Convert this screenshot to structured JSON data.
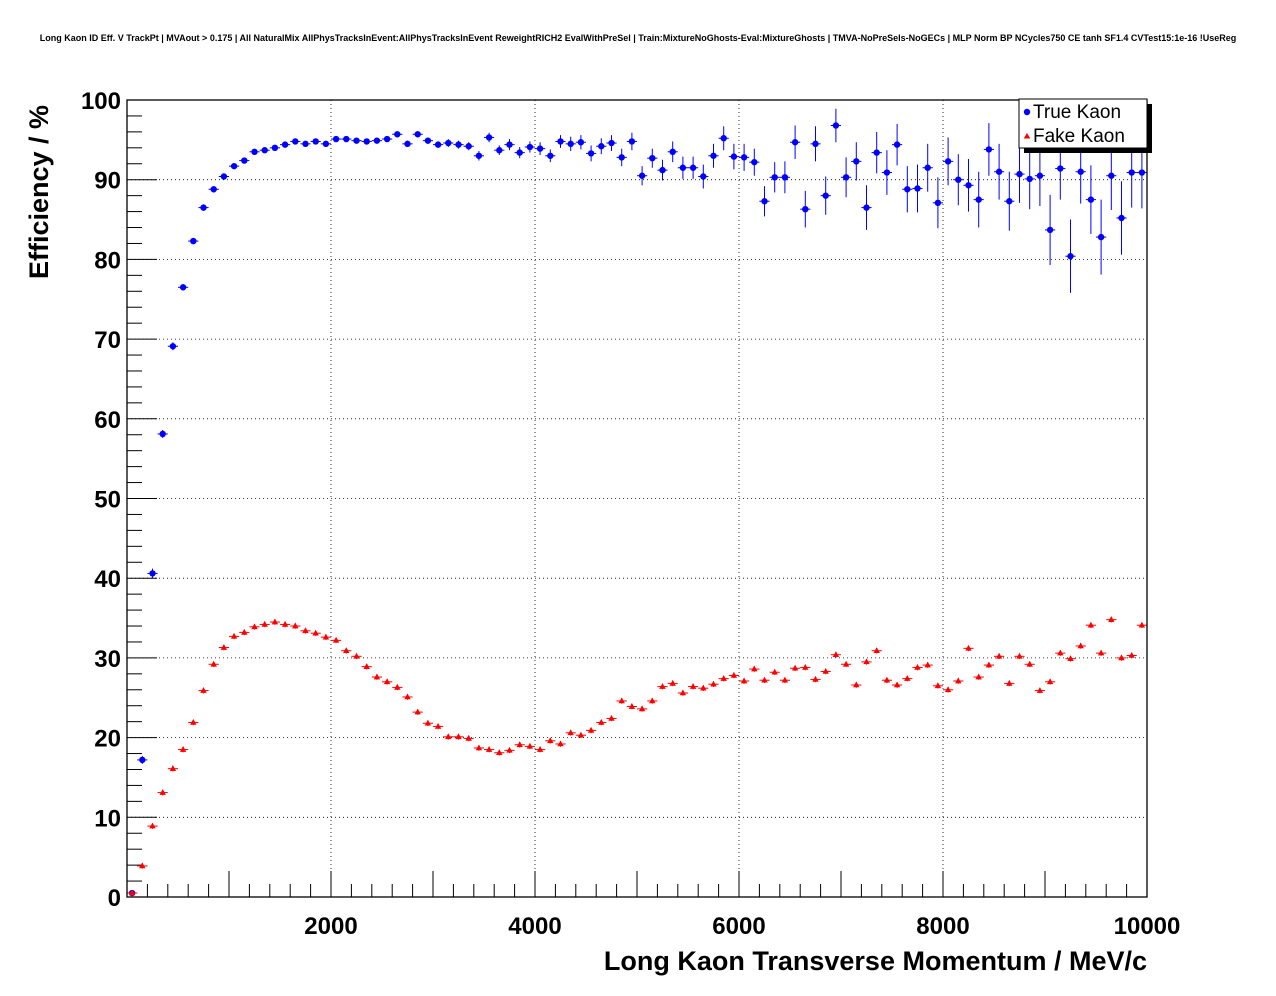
{
  "chart_data": {
    "type": "scatter",
    "title": "Long Kaon ID Eff. V TrackPt | MVAout > 0.175 | All NaturalMix AllPhysTracksInEvent:AllPhysTracksInEvent ReweightRICH2 EvalWithPreSel | Train:MixtureNoGhosts-Eval:MixtureGhosts | TMVA-NoPreSels-NoGECs | MLP Norm BP NCycles750 CE tanh SF1.4 CVTest15:1e-16 !UseReg",
    "xlabel": "Long Kaon Transverse Momentum / MeV/c",
    "ylabel": "Efficiency / %",
    "xlim": [
      0,
      10000
    ],
    "ylim": [
      0,
      100
    ],
    "xticks": [
      2000,
      4000,
      6000,
      8000,
      10000
    ],
    "yticks": [
      0,
      10,
      20,
      30,
      40,
      50,
      60,
      70,
      80,
      90,
      100
    ],
    "grid": true,
    "legend_position": "top-right",
    "series": [
      {
        "name": "True Kaon",
        "color": "#0000ff",
        "marker": "circle",
        "x": [
          50,
          150,
          250,
          350,
          450,
          550,
          650,
          750,
          850,
          950,
          1050,
          1150,
          1250,
          1350,
          1450,
          1550,
          1650,
          1750,
          1850,
          1950,
          2050,
          2150,
          2250,
          2350,
          2450,
          2550,
          2650,
          2750,
          2850,
          2950,
          3050,
          3150,
          3250,
          3350,
          3450,
          3550,
          3650,
          3750,
          3850,
          3950,
          4050,
          4150,
          4250,
          4350,
          4450,
          4550,
          4650,
          4750,
          4850,
          4950,
          5050,
          5150,
          5250,
          5350,
          5450,
          5550,
          5650,
          5750,
          5850,
          5950,
          6050,
          6150,
          6250,
          6350,
          6450,
          6550,
          6650,
          6750,
          6850,
          6950,
          7050,
          7150,
          7250,
          7350,
          7450,
          7550,
          7650,
          7750,
          7850,
          7950,
          8050,
          8150,
          8250,
          8350,
          8450,
          8550,
          8650,
          8750,
          8850,
          8950,
          9050,
          9150,
          9250,
          9350,
          9450,
          9550,
          9650,
          9750,
          9850,
          9950
        ],
        "y": [
          0.5,
          17.2,
          40.6,
          58.1,
          69.1,
          76.5,
          82.3,
          86.5,
          88.8,
          90.4,
          91.7,
          92.4,
          93.5,
          93.7,
          94.0,
          94.4,
          94.8,
          94.5,
          94.8,
          94.5,
          95.1,
          95.1,
          94.9,
          94.8,
          94.9,
          95.1,
          95.7,
          94.5,
          95.7,
          94.9,
          94.4,
          94.6,
          94.4,
          94.2,
          93.0,
          95.3,
          93.7,
          94.4,
          93.4,
          94.1,
          93.9,
          93.0,
          94.8,
          94.5,
          94.7,
          93.3,
          94.2,
          94.6,
          92.8,
          94.8,
          90.5,
          92.7,
          91.2,
          93.5,
          91.5,
          91.5,
          90.4,
          93.0,
          95.2,
          92.9,
          92.8,
          92.2,
          87.3,
          90.3,
          90.3,
          94.7,
          86.3,
          94.5,
          88.0,
          96.8,
          90.3,
          92.3,
          86.5,
          93.4,
          90.9,
          94.4,
          88.8,
          88.9,
          91.5,
          87.1,
          92.3,
          90.0,
          89.3,
          87.5,
          93.8,
          91.0,
          87.3,
          90.7,
          90.1,
          90.5,
          83.7,
          91.4,
          80.4,
          91.0,
          87.5,
          82.8,
          90.5,
          85.2,
          90.9,
          90.9
        ],
        "err": [
          0.1,
          0.5,
          0.6,
          0.5,
          0.5,
          0.4,
          0.4,
          0.4,
          0.4,
          0.3,
          0.3,
          0.3,
          0.3,
          0.3,
          0.3,
          0.3,
          0.3,
          0.3,
          0.3,
          0.3,
          0.3,
          0.3,
          0.3,
          0.3,
          0.3,
          0.3,
          0.4,
          0.4,
          0.4,
          0.4,
          0.4,
          0.5,
          0.5,
          0.5,
          0.6,
          0.6,
          0.6,
          0.7,
          0.7,
          0.7,
          0.8,
          0.8,
          0.8,
          0.9,
          0.9,
          1.0,
          1.0,
          1.0,
          1.1,
          1.1,
          1.2,
          1.2,
          1.3,
          1.3,
          1.4,
          1.4,
          1.5,
          1.5,
          1.5,
          1.6,
          1.7,
          1.7,
          1.9,
          1.9,
          2.0,
          2.1,
          2.3,
          2.2,
          2.4,
          2.1,
          2.5,
          2.4,
          2.8,
          2.6,
          2.8,
          2.6,
          2.9,
          3.0,
          3.0,
          3.2,
          3.0,
          3.2,
          3.3,
          3.5,
          3.3,
          3.5,
          3.7,
          3.6,
          3.8,
          3.8,
          4.4,
          3.9,
          4.6,
          4.0,
          4.3,
          4.7,
          4.3,
          4.6,
          4.4,
          4.5
        ]
      },
      {
        "name": "Fake Kaon",
        "color": "#ff0000",
        "marker": "triangle",
        "x": [
          50,
          150,
          250,
          350,
          450,
          550,
          650,
          750,
          850,
          950,
          1050,
          1150,
          1250,
          1350,
          1450,
          1550,
          1650,
          1750,
          1850,
          1950,
          2050,
          2150,
          2250,
          2350,
          2450,
          2550,
          2650,
          2750,
          2850,
          2950,
          3050,
          3150,
          3250,
          3350,
          3450,
          3550,
          3650,
          3750,
          3850,
          3950,
          4050,
          4150,
          4250,
          4350,
          4450,
          4550,
          4650,
          4750,
          4850,
          4950,
          5050,
          5150,
          5250,
          5350,
          5450,
          5550,
          5650,
          5750,
          5850,
          5950,
          6050,
          6150,
          6250,
          6350,
          6450,
          6550,
          6650,
          6750,
          6850,
          6950,
          7050,
          7150,
          7250,
          7350,
          7450,
          7550,
          7650,
          7750,
          7850,
          7950,
          8050,
          8150,
          8250,
          8350,
          8450,
          8550,
          8650,
          8750,
          8850,
          8950,
          9050,
          9150,
          9250,
          9350,
          9450,
          9550,
          9650,
          9750,
          9850,
          9950
        ],
        "y": [
          0.5,
          3.9,
          8.9,
          13.1,
          16.1,
          18.5,
          21.9,
          25.9,
          29.2,
          31.3,
          32.7,
          33.2,
          33.9,
          34.2,
          34.5,
          34.2,
          34.0,
          33.4,
          33.1,
          32.6,
          32.2,
          30.9,
          30.2,
          28.9,
          27.6,
          27.0,
          26.3,
          25.1,
          23.2,
          21.8,
          21.4,
          20.1,
          20.1,
          19.9,
          18.7,
          18.5,
          18.1,
          18.4,
          19.1,
          18.9,
          18.5,
          19.6,
          19.2,
          20.6,
          20.3,
          20.9,
          21.9,
          22.4,
          24.6,
          23.9,
          23.6,
          24.6,
          26.4,
          26.8,
          25.6,
          26.4,
          26.2,
          26.7,
          27.4,
          27.8,
          27.1,
          28.6,
          27.2,
          28.2,
          27.2,
          28.7,
          28.8,
          27.3,
          28.3,
          30.4,
          29.2,
          26.6,
          29.5,
          30.9,
          27.2,
          26.6,
          27.4,
          28.8,
          29.1,
          26.5,
          26.0,
          27.1,
          31.2,
          27.6,
          29.1,
          30.2,
          26.8,
          30.2,
          29.2,
          25.9,
          27.0,
          30.6,
          29.9,
          31.5,
          34.1,
          30.6,
          34.8,
          30.0,
          30.3,
          34.1
        ]
      }
    ]
  }
}
